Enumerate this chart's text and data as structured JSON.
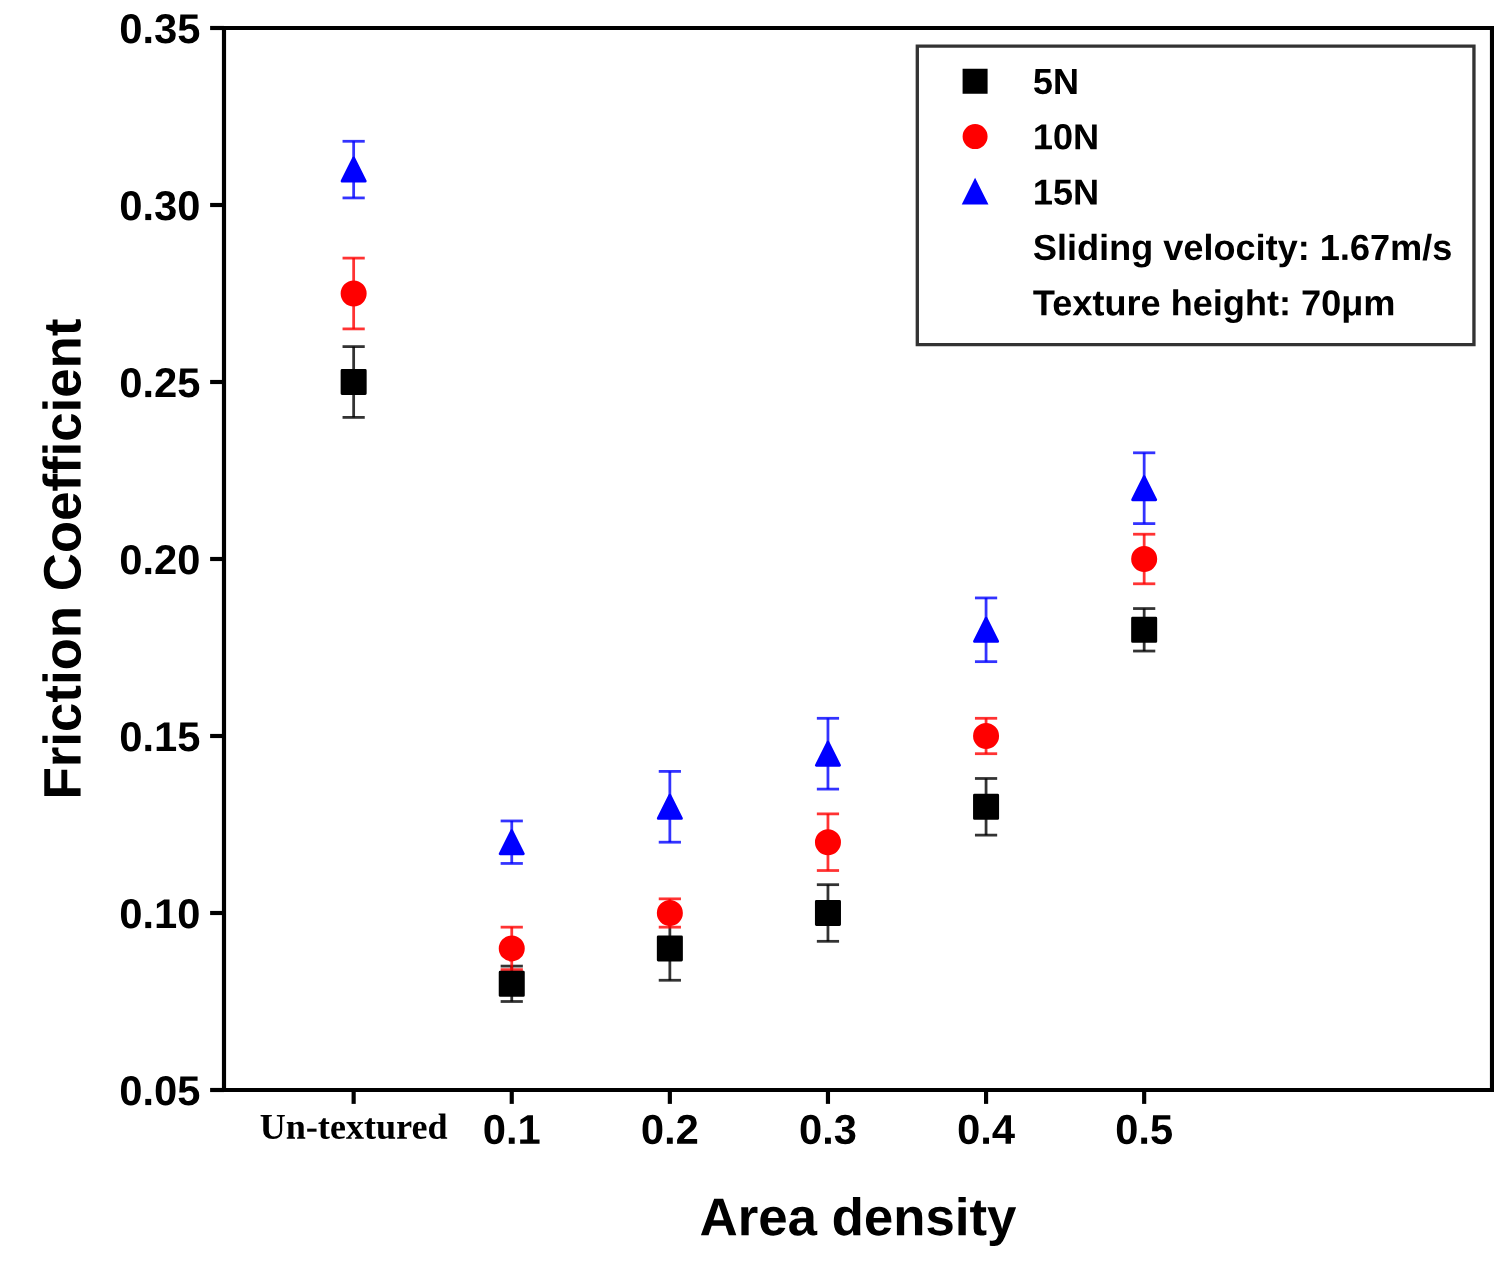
{
  "chart_data": {
    "type": "scatter",
    "xlabel": "Area density",
    "ylabel": "Friction Coefficient",
    "categories": [
      "Un-textured",
      "0.1",
      "0.2",
      "0.3",
      "0.4",
      "0.5"
    ],
    "series": [
      {
        "name": "5N",
        "color": "#000000",
        "marker": "square",
        "values": [
          0.25,
          0.08,
          0.09,
          0.1,
          0.13,
          0.18
        ],
        "errors": [
          0.01,
          0.005,
          0.009,
          0.008,
          0.008,
          0.006
        ]
      },
      {
        "name": "10N",
        "color": "#ff0000",
        "marker": "circle",
        "values": [
          0.275,
          0.09,
          0.1,
          0.12,
          0.15,
          0.2
        ],
        "errors": [
          0.01,
          0.006,
          0.004,
          0.008,
          0.005,
          0.007
        ]
      },
      {
        "name": "15N",
        "color": "#0000ff",
        "marker": "triangle",
        "values": [
          0.31,
          0.12,
          0.13,
          0.145,
          0.18,
          0.22
        ],
        "errors": [
          0.008,
          0.006,
          0.01,
          0.01,
          0.009,
          0.01
        ]
      }
    ],
    "ylim": [
      0.05,
      0.35
    ],
    "yticks": [
      0.05,
      {
        "value": 0.1,
        "label": "0.10"
      },
      0.15,
      {
        "value": 0.2,
        "label": "0.20"
      },
      0.25,
      {
        "value": 0.3,
        "label": "0.30"
      },
      0.35
    ],
    "annotations": [
      "Sliding velocity: 1.67m/s",
      "Texture height: 70μm"
    ],
    "legend": "top right",
    "grid": false
  }
}
